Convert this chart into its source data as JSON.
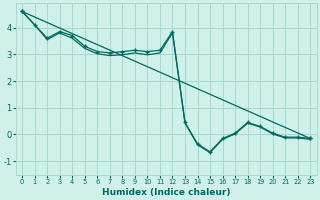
{
  "xlabel": "Humidex (Indice chaleur)",
  "bg_color": "#cef0e8",
  "grid_color": "#a8d8cc",
  "line_color": "#006b60",
  "xlim": [
    -0.5,
    23.5
  ],
  "ylim": [
    -1.5,
    4.9
  ],
  "xticks": [
    0,
    1,
    2,
    3,
    4,
    5,
    6,
    7,
    8,
    9,
    10,
    11,
    12,
    13,
    14,
    15,
    16,
    17,
    18,
    19,
    20,
    21,
    22,
    23
  ],
  "yticks": [
    -1,
    0,
    1,
    2,
    3,
    4
  ],
  "line1_x": [
    0,
    1,
    2,
    3,
    4,
    5,
    6,
    7,
    8,
    9,
    10,
    11,
    12,
    13,
    14,
    15,
    16,
    17,
    18,
    19,
    20,
    21,
    22,
    23
  ],
  "line1_y": [
    4.6,
    4.1,
    3.6,
    3.85,
    3.7,
    3.3,
    3.1,
    3.05,
    3.1,
    3.15,
    3.1,
    3.15,
    3.85,
    0.45,
    -0.35,
    -0.65,
    -0.15,
    0.05,
    0.45,
    0.3,
    0.05,
    -0.1,
    -0.1,
    -0.15
  ],
  "line2_x": [
    0,
    1,
    2,
    3,
    4,
    5,
    6,
    7,
    8,
    9,
    10,
    11,
    12,
    13,
    14,
    15,
    16,
    17,
    18,
    19,
    20,
    21,
    22,
    23
  ],
  "line2_y": [
    4.6,
    4.1,
    3.55,
    3.8,
    3.6,
    3.22,
    3.02,
    2.95,
    2.98,
    3.05,
    2.98,
    3.05,
    3.8,
    0.42,
    -0.38,
    -0.68,
    -0.18,
    0.02,
    0.42,
    0.28,
    0.02,
    -0.13,
    -0.13,
    -0.18
  ],
  "line3_x": [
    0,
    23
  ],
  "line3_y": [
    4.6,
    -0.15
  ]
}
